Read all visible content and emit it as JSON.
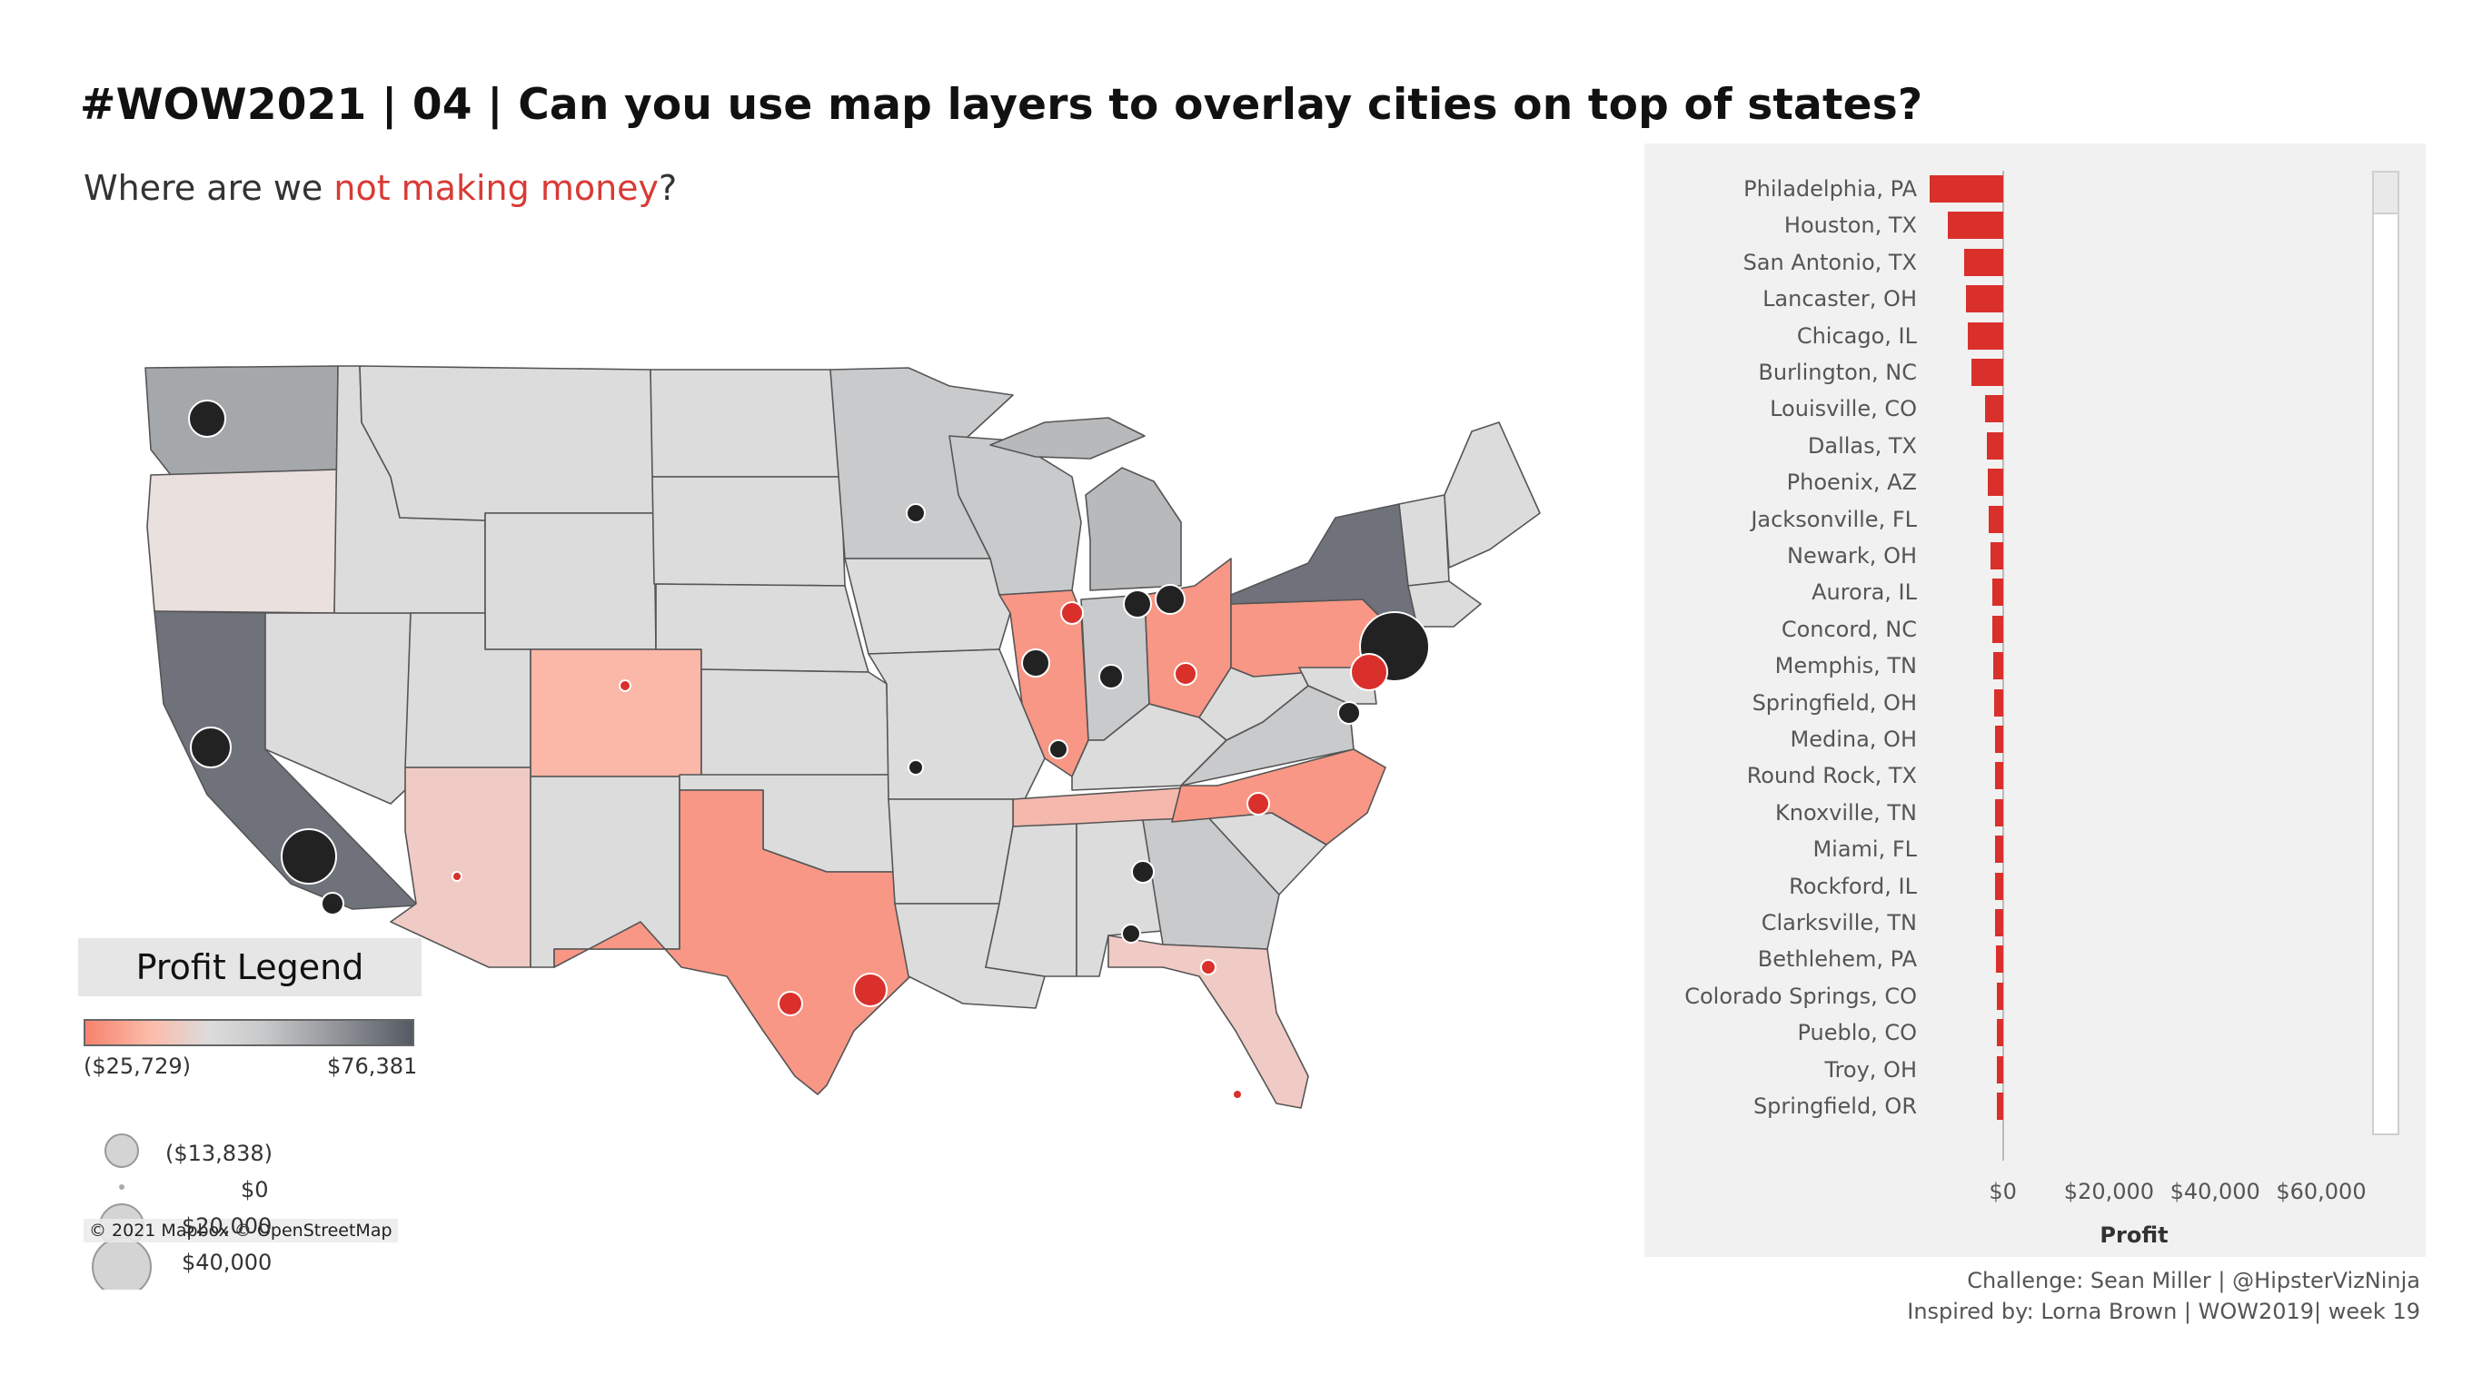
{
  "header": {
    "title": "#WOW2021 | 04 | Can you use map layers to overlay cities on top of states?",
    "subtitle_prefix": "Where are we ",
    "subtitle_highlight": "not making money",
    "subtitle_suffix": "?"
  },
  "colors": {
    "loss": "#d9302b",
    "loss_light": "#f7826c",
    "neutral": "#dcdcdc",
    "profit_dark": "#555a63",
    "city_profit": "#222222"
  },
  "legend": {
    "title": "Profit Legend",
    "color_min_label": "($25,729)",
    "color_max_label": "$76,381",
    "size_labels": [
      "($13,838)",
      "$0",
      "$20,000",
      "$40,000"
    ],
    "attribution": "© 2021 Mapbox © OpenStreetMap"
  },
  "chart_data": {
    "type": "bar",
    "orientation": "horizontal",
    "categories": [
      "Philadelphia, PA",
      "Houston, TX",
      "San Antonio, TX",
      "Lancaster, OH",
      "Chicago, IL",
      "Burlington, NC",
      "Louisville, CO",
      "Dallas, TX",
      "Phoenix, AZ",
      "Jacksonville, FL",
      "Newark, OH",
      "Aurora, IL",
      "Concord, NC",
      "Memphis, TN",
      "Springfield, OH",
      "Medina, OH",
      "Round Rock, TX",
      "Knoxville, TN",
      "Miami, FL",
      "Rockford, IL",
      "Clarksville, TN",
      "Bethlehem, PA",
      "Colorado Springs, CO",
      "Pueblo, CO",
      "Troy, OH",
      "Springfield, OR"
    ],
    "values": [
      -13838,
      -10400,
      -7300,
      -7000,
      -6700,
      -6000,
      -3400,
      -3000,
      -2900,
      -2600,
      -2300,
      -2000,
      -2000,
      -1800,
      -1700,
      -1500,
      -1500,
      -1400,
      -1400,
      -1400,
      -1400,
      -1300,
      -1200,
      -1200,
      -1200,
      -1100
    ],
    "xlabel": "Profit",
    "ylabel": "",
    "x_ticks": [
      "$0",
      "$20,000",
      "$40,000",
      "$60,000"
    ],
    "x_tick_values": [
      0,
      20000,
      40000,
      60000
    ],
    "xlim": [
      -14500,
      66000
    ]
  },
  "credits": {
    "line1": "Challenge: Sean Miller | @HipsterVizNinja",
    "line2": "Inspired by: Lorna Brown | WOW2019| week 19"
  }
}
